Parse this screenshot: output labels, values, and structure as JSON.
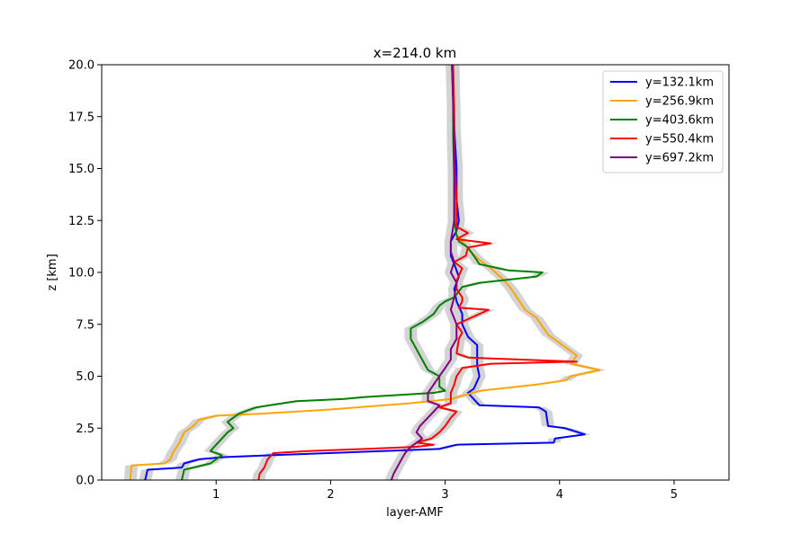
{
  "chart_data": {
    "type": "line",
    "title": "x=214.0 km",
    "xlabel": "layer-AMF",
    "ylabel": "z [km]",
    "xlim": [
      0.0,
      5.48
    ],
    "ylim": [
      0,
      20
    ],
    "xticks": [
      1,
      2,
      3,
      4,
      5
    ],
    "yticks": [
      0.0,
      2.5,
      5.0,
      7.5,
      10.0,
      12.5,
      15.0,
      17.5,
      20.0
    ],
    "xtick_labels": [
      "1",
      "2",
      "3",
      "4",
      "5"
    ],
    "ytick_labels": [
      "0.0",
      "2.5",
      "5.0",
      "7.5",
      "10.0",
      "12.5",
      "15.0",
      "17.5",
      "20.0"
    ],
    "legend_position": "top-right",
    "band_color": "#d3d3d3",
    "series": [
      {
        "name": "y=132.1km",
        "color": "#0000ff",
        "points": [
          [
            0.38,
            0.0
          ],
          [
            0.4,
            0.5
          ],
          [
            0.7,
            0.6
          ],
          [
            0.72,
            0.8
          ],
          [
            0.85,
            1.0
          ],
          [
            1.05,
            1.1
          ],
          [
            1.5,
            1.2
          ],
          [
            2.95,
            1.5
          ],
          [
            3.1,
            1.7
          ],
          [
            3.95,
            1.8
          ],
          [
            3.96,
            2.0
          ],
          [
            4.22,
            2.2
          ],
          [
            4.05,
            2.5
          ],
          [
            3.9,
            2.6
          ],
          [
            3.88,
            3.3
          ],
          [
            3.82,
            3.5
          ],
          [
            3.3,
            3.6
          ],
          [
            3.25,
            3.9
          ],
          [
            3.2,
            4.2
          ],
          [
            3.25,
            4.4
          ],
          [
            3.3,
            5.0
          ],
          [
            3.28,
            5.5
          ],
          [
            3.28,
            6.5
          ],
          [
            3.2,
            6.9
          ],
          [
            3.15,
            7.5
          ],
          [
            3.15,
            8.0
          ],
          [
            3.1,
            8.6
          ],
          [
            3.08,
            9.2
          ],
          [
            3.12,
            9.8
          ],
          [
            3.08,
            10.4
          ],
          [
            3.05,
            10.8
          ],
          [
            3.05,
            11.5
          ],
          [
            3.1,
            12.0
          ],
          [
            3.12,
            12.5
          ],
          [
            3.1,
            13.5
          ],
          [
            3.1,
            15.0
          ],
          [
            3.08,
            17.0
          ],
          [
            3.07,
            18.5
          ],
          [
            3.06,
            20.0
          ]
        ]
      },
      {
        "name": "y=256.9km",
        "color": "#ffa500",
        "points": [
          [
            0.25,
            0.0
          ],
          [
            0.26,
            0.7
          ],
          [
            0.55,
            0.8
          ],
          [
            0.6,
            1.0
          ],
          [
            0.62,
            1.3
          ],
          [
            0.68,
            1.8
          ],
          [
            0.72,
            2.3
          ],
          [
            0.8,
            2.6
          ],
          [
            0.85,
            2.9
          ],
          [
            1.0,
            3.1
          ],
          [
            1.4,
            3.2
          ],
          [
            2.0,
            3.4
          ],
          [
            2.7,
            3.7
          ],
          [
            3.05,
            3.9
          ],
          [
            3.3,
            4.3
          ],
          [
            3.8,
            4.6
          ],
          [
            4.05,
            4.8
          ],
          [
            4.1,
            5.0
          ],
          [
            4.35,
            5.3
          ],
          [
            4.1,
            5.6
          ],
          [
            4.15,
            6.0
          ],
          [
            4.05,
            6.4
          ],
          [
            3.9,
            7.0
          ],
          [
            3.8,
            7.8
          ],
          [
            3.7,
            8.2
          ],
          [
            3.65,
            8.6
          ],
          [
            3.58,
            9.2
          ],
          [
            3.5,
            9.7
          ],
          [
            3.4,
            10.2
          ],
          [
            3.3,
            10.6
          ],
          [
            3.22,
            11.0
          ],
          [
            3.18,
            11.3
          ],
          [
            3.1,
            11.8
          ],
          [
            3.08,
            12.5
          ],
          [
            3.08,
            14.0
          ],
          [
            3.08,
            16.0
          ],
          [
            3.08,
            18.0
          ],
          [
            3.06,
            20.0
          ]
        ]
      },
      {
        "name": "y=403.6km",
        "color": "#008000",
        "points": [
          [
            0.7,
            0.0
          ],
          [
            0.72,
            0.5
          ],
          [
            0.8,
            0.6
          ],
          [
            0.95,
            0.8
          ],
          [
            1.0,
            1.0
          ],
          [
            1.05,
            1.2
          ],
          [
            0.95,
            1.4
          ],
          [
            1.0,
            1.7
          ],
          [
            1.05,
            2.0
          ],
          [
            1.1,
            2.3
          ],
          [
            1.15,
            2.5
          ],
          [
            1.1,
            2.8
          ],
          [
            1.2,
            3.2
          ],
          [
            1.35,
            3.5
          ],
          [
            1.7,
            3.8
          ],
          [
            2.1,
            3.9
          ],
          [
            2.3,
            4.0
          ],
          [
            2.9,
            4.2
          ],
          [
            3.0,
            4.3
          ],
          [
            2.95,
            4.5
          ],
          [
            2.95,
            5.0
          ],
          [
            2.85,
            5.3
          ],
          [
            2.8,
            5.8
          ],
          [
            2.75,
            6.3
          ],
          [
            2.7,
            6.8
          ],
          [
            2.7,
            7.3
          ],
          [
            2.8,
            7.6
          ],
          [
            2.9,
            8.0
          ],
          [
            2.95,
            8.4
          ],
          [
            3.0,
            8.6
          ],
          [
            3.08,
            8.8
          ],
          [
            3.15,
            9.3
          ],
          [
            3.3,
            9.5
          ],
          [
            3.8,
            9.8
          ],
          [
            3.85,
            10.0
          ],
          [
            3.55,
            10.1
          ],
          [
            3.3,
            10.4
          ],
          [
            3.25,
            10.8
          ],
          [
            3.2,
            11.2
          ],
          [
            3.12,
            11.5
          ],
          [
            3.1,
            11.8
          ],
          [
            3.08,
            12.5
          ],
          [
            3.08,
            14.5
          ],
          [
            3.07,
            16.5
          ],
          [
            3.07,
            18.5
          ],
          [
            3.06,
            20.0
          ]
        ]
      },
      {
        "name": "y=550.4km",
        "color": "#ff0000",
        "points": [
          [
            1.37,
            0.0
          ],
          [
            1.38,
            0.3
          ],
          [
            1.42,
            0.6
          ],
          [
            1.45,
            1.0
          ],
          [
            1.5,
            1.3
          ],
          [
            1.8,
            1.4
          ],
          [
            2.3,
            1.5
          ],
          [
            2.75,
            1.6
          ],
          [
            2.9,
            1.7
          ],
          [
            2.75,
            1.8
          ],
          [
            2.88,
            2.0
          ],
          [
            2.95,
            2.3
          ],
          [
            3.0,
            2.6
          ],
          [
            3.05,
            3.0
          ],
          [
            3.1,
            3.3
          ],
          [
            2.95,
            3.5
          ],
          [
            3.05,
            3.7
          ],
          [
            3.05,
            4.2
          ],
          [
            3.08,
            4.6
          ],
          [
            3.1,
            5.0
          ],
          [
            3.15,
            5.4
          ],
          [
            3.4,
            5.6
          ],
          [
            4.15,
            5.7
          ],
          [
            3.2,
            5.9
          ],
          [
            3.1,
            6.1
          ],
          [
            3.12,
            6.8
          ],
          [
            3.15,
            7.1
          ],
          [
            3.1,
            7.5
          ],
          [
            3.38,
            8.2
          ],
          [
            3.12,
            8.3
          ],
          [
            3.15,
            8.6
          ],
          [
            3.15,
            8.8
          ],
          [
            3.1,
            9.2
          ],
          [
            3.1,
            9.6
          ],
          [
            3.15,
            10.2
          ],
          [
            3.08,
            10.5
          ],
          [
            3.18,
            10.8
          ],
          [
            3.2,
            11.2
          ],
          [
            3.4,
            11.4
          ],
          [
            3.1,
            11.6
          ],
          [
            3.2,
            11.9
          ],
          [
            3.1,
            12.2
          ],
          [
            3.1,
            13.5
          ],
          [
            3.08,
            15.5
          ],
          [
            3.08,
            17.5
          ],
          [
            3.07,
            20.0
          ]
        ]
      },
      {
        "name": "y=697.2km",
        "color": "#800080",
        "points": [
          [
            2.53,
            0.0
          ],
          [
            2.55,
            0.3
          ],
          [
            2.58,
            0.6
          ],
          [
            2.62,
            1.0
          ],
          [
            2.65,
            1.3
          ],
          [
            2.7,
            1.6
          ],
          [
            2.75,
            1.8
          ],
          [
            2.8,
            2.0
          ],
          [
            2.75,
            2.3
          ],
          [
            2.78,
            2.6
          ],
          [
            2.9,
            3.3
          ],
          [
            2.95,
            3.6
          ],
          [
            2.85,
            3.8
          ],
          [
            2.85,
            4.2
          ],
          [
            2.9,
            4.6
          ],
          [
            2.95,
            5.0
          ],
          [
            3.0,
            5.4
          ],
          [
            3.05,
            5.8
          ],
          [
            3.05,
            6.3
          ],
          [
            3.1,
            6.8
          ],
          [
            3.1,
            7.5
          ],
          [
            3.05,
            8.2
          ],
          [
            3.08,
            8.8
          ],
          [
            3.1,
            9.5
          ],
          [
            3.05,
            10.0
          ],
          [
            3.08,
            10.5
          ],
          [
            3.05,
            11.0
          ],
          [
            3.05,
            11.5
          ],
          [
            3.08,
            12.5
          ],
          [
            3.08,
            14.0
          ],
          [
            3.08,
            16.0
          ],
          [
            3.07,
            18.0
          ],
          [
            3.06,
            20.0
          ]
        ]
      }
    ]
  }
}
